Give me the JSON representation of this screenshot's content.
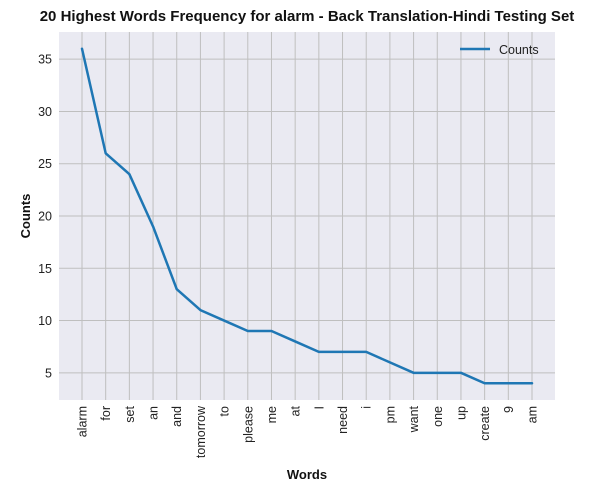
{
  "chart_data": {
    "type": "line",
    "title": "20 Highest Words Frequency for alarm - Back Translation-Hindi Testing Set",
    "xlabel": "Words",
    "ylabel": "Counts",
    "categories": [
      "alarm",
      "for",
      "set",
      "an",
      "and",
      "tomorrow",
      "to",
      "please",
      "me",
      "at",
      "I",
      "need",
      "i",
      "pm",
      "want",
      "one",
      "up",
      "create",
      "9",
      "am"
    ],
    "series": [
      {
        "name": "Counts",
        "values": [
          36,
          26,
          24,
          19,
          13,
          11,
          10,
          9,
          9,
          8,
          7,
          7,
          7,
          6,
          5,
          5,
          5,
          4,
          4,
          4
        ],
        "color": "#1f77b4"
      }
    ],
    "ylim": [
      2.4,
      37.6
    ],
    "yticks": [
      5,
      10,
      15,
      20,
      25,
      30,
      35
    ],
    "grid": true,
    "legend_position": "upper-right",
    "background_color": "#eaeaf2",
    "grid_color": "#bfbfbf"
  }
}
